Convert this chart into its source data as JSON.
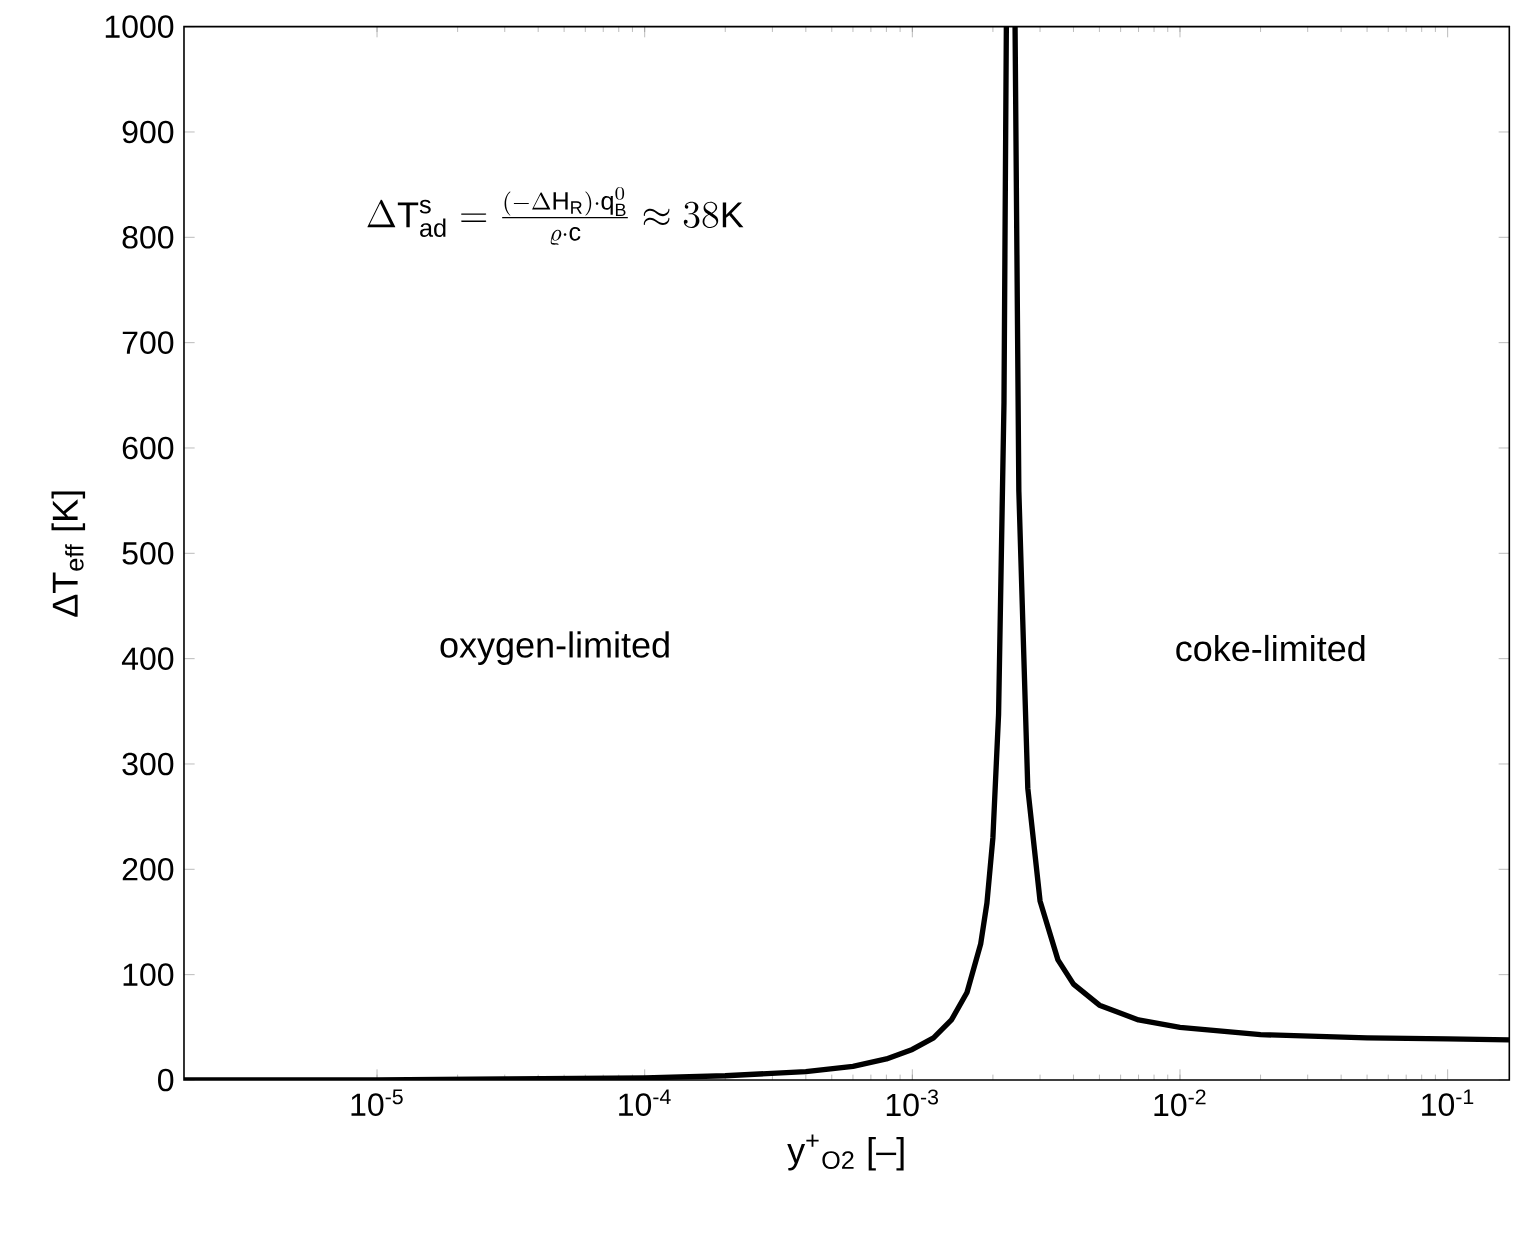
{
  "chart_data": {
    "type": "line",
    "xlabel": "y$^{+}$$_{O2}$ [–]",
    "ylabel": "ΔT$_{eff}$ [K]",
    "annotations": [
      "\\Delta \\mathrm{T}^{\\mathrm{s}}_{\\mathrm{ad}} = \\frac{(-\\Delta \\mathrm{H}_{\\mathrm{R}})\\cdot \\mathrm{q}^{0}_{\\mathrm{B}}}{\\varrho\\cdot \\mathrm{c}} \\approx 38\\mathrm{K}",
      "oxygen-limited",
      "coke-limited"
    ],
    "log": "x",
    "xlim": [
      1.9e-06,
      0.17
    ],
    "ylim": [
      0,
      1000
    ],
    "xticks": [
      {
        "value": 1e-05,
        "label": "10$^{-5}$"
      },
      {
        "value": 0.0001,
        "label": "10$^{-4}$"
      },
      {
        "value": 0.001,
        "label": "10$^{-3}$"
      },
      {
        "value": 0.01,
        "label": "10$^{-2}$"
      },
      {
        "value": 0.1,
        "label": "10$^{-1}$"
      }
    ],
    "yticks": [
      0,
      100,
      200,
      300,
      400,
      500,
      600,
      700,
      800,
      900,
      1000
    ],
    "series": [
      {
        "color": "#000000",
        "line_style": "solid",
        "x": [
          1.9e-06,
          1e-05,
          3e-05,
          0.0001,
          0.0002,
          0.0004,
          0.0006,
          0.0008,
          0.001,
          0.0012,
          0.0014,
          0.0016,
          0.0018,
          0.0019,
          0.002,
          0.0021,
          0.0022,
          0.002245,
          0.00233,
          0.00242,
          0.0025,
          0.0027,
          0.003,
          0.0035,
          0.004,
          0.005,
          0.007,
          0.01,
          0.02,
          0.05,
          0.1,
          0.17
        ],
        "values": [
          0,
          0,
          1,
          2,
          4,
          8,
          13,
          20,
          29,
          40,
          57,
          83,
          129,
          168,
          230,
          347,
          643,
          1000,
          null,
          1000,
          559,
          277,
          170,
          114,
          91,
          71,
          57,
          50,
          43,
          40,
          39,
          38
        ]
      }
    ]
  }
}
